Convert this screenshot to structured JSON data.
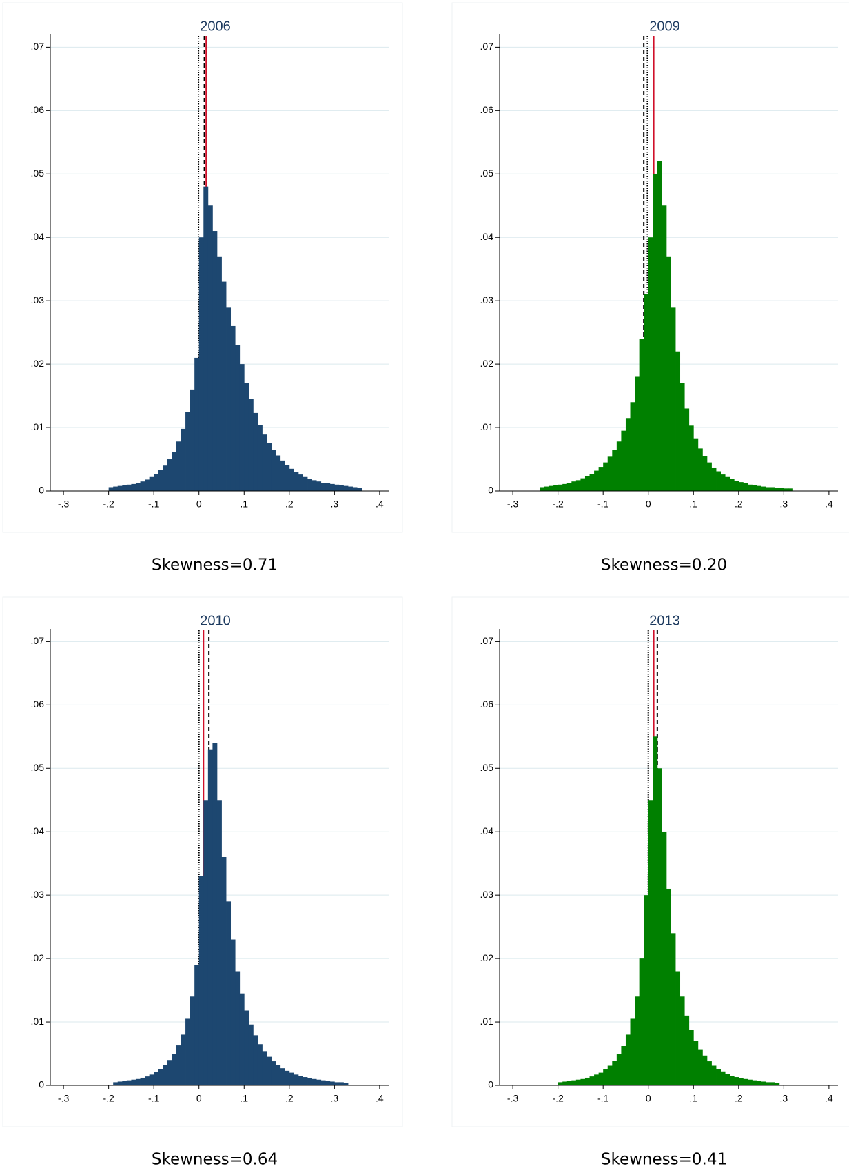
{
  "chart_data": [
    {
      "type": "histogram",
      "title": "2006",
      "caption": "Skewness=0.71",
      "color": "#1d4770",
      "grid": true,
      "xlim": [
        -0.32,
        0.42
      ],
      "ylim": [
        0,
        0.072
      ],
      "xticks": [
        {
          "value": -0.3,
          "label": "-.3"
        },
        {
          "value": -0.2,
          "label": "-.2"
        },
        {
          "value": -0.1,
          "label": "-.1"
        },
        0,
        {
          "value": 0.1,
          "label": ".1"
        },
        {
          "value": 0.2,
          "label": ".2"
        },
        {
          "value": 0.3,
          "label": ".3"
        },
        {
          "value": 0.4,
          "label": ".4"
        }
      ],
      "yticks": [
        0,
        {
          "value": 0.01,
          "label": ".01"
        },
        {
          "value": 0.02,
          "label": ".02"
        },
        {
          "value": 0.03,
          "label": ".03"
        },
        {
          "value": 0.04,
          "label": ".04"
        },
        {
          "value": 0.05,
          "label": ".05"
        },
        {
          "value": 0.06,
          "label": ".06"
        },
        {
          "value": 0.07,
          "label": ".07"
        }
      ],
      "bins": [
        -0.2,
        -0.19,
        -0.18,
        -0.17,
        -0.16,
        -0.15,
        -0.14,
        -0.13,
        -0.12,
        -0.11,
        -0.1,
        -0.09,
        -0.08,
        -0.07,
        -0.06,
        -0.05,
        -0.04,
        -0.03,
        -0.02,
        -0.01,
        0,
        0.01,
        0.02,
        0.03,
        0.04,
        0.05,
        0.06,
        0.07,
        0.08,
        0.09,
        0.1,
        0.11,
        0.12,
        0.13,
        0.14,
        0.15,
        0.16,
        0.17,
        0.18,
        0.19,
        0.2,
        0.21,
        0.22,
        0.23,
        0.24,
        0.25,
        0.26,
        0.27,
        0.28,
        0.29,
        0.3,
        0.31,
        0.32,
        0.33,
        0.34,
        0.35,
        0.36
      ],
      "values": [
        0.0006,
        0.0007,
        0.0008,
        0.0009,
        0.001,
        0.0011,
        0.0013,
        0.0015,
        0.0018,
        0.0022,
        0.0027,
        0.0033,
        0.004,
        0.005,
        0.0062,
        0.0078,
        0.0098,
        0.0125,
        0.016,
        0.021,
        0.04,
        0.048,
        0.045,
        0.041,
        0.037,
        0.033,
        0.029,
        0.026,
        0.023,
        0.02,
        0.017,
        0.0145,
        0.0123,
        0.0104,
        0.0089,
        0.0076,
        0.0065,
        0.0056,
        0.0048,
        0.0041,
        0.0035,
        0.003,
        0.0026,
        0.0022,
        0.0019,
        0.0017,
        0.0015,
        0.0013,
        0.0012,
        0.0011,
        0.001,
        0.0009,
        0.0008,
        0.0007,
        0.0006,
        0.0005
      ],
      "reference_lines": [
        {
          "x": -0.001,
          "color": "#000000",
          "style": "dotted"
        },
        {
          "x": 0.012,
          "color": "#000000",
          "style": "dashed"
        },
        {
          "x": 0.016,
          "color": "#d0102a",
          "style": "solid"
        }
      ]
    },
    {
      "type": "histogram",
      "title": "2009",
      "caption": "Skewness=0.20",
      "color": "#008000",
      "grid": true,
      "xlim": [
        -0.32,
        0.42
      ],
      "ylim": [
        0,
        0.072
      ],
      "xticks": [
        {
          "value": -0.3,
          "label": "-.3"
        },
        {
          "value": -0.2,
          "label": "-.2"
        },
        {
          "value": -0.1,
          "label": "-.1"
        },
        0,
        {
          "value": 0.1,
          "label": ".1"
        },
        {
          "value": 0.2,
          "label": ".2"
        },
        {
          "value": 0.3,
          "label": ".3"
        },
        {
          "value": 0.4,
          "label": ".4"
        }
      ],
      "yticks": [
        0,
        {
          "value": 0.01,
          "label": ".01"
        },
        {
          "value": 0.02,
          "label": ".02"
        },
        {
          "value": 0.03,
          "label": ".03"
        },
        {
          "value": 0.04,
          "label": ".04"
        },
        {
          "value": 0.05,
          "label": ".05"
        },
        {
          "value": 0.06,
          "label": ".06"
        },
        {
          "value": 0.07,
          "label": ".07"
        }
      ],
      "bins": [
        -0.24,
        -0.23,
        -0.22,
        -0.21,
        -0.2,
        -0.19,
        -0.18,
        -0.17,
        -0.16,
        -0.15,
        -0.14,
        -0.13,
        -0.12,
        -0.11,
        -0.1,
        -0.09,
        -0.08,
        -0.07,
        -0.06,
        -0.05,
        -0.04,
        -0.03,
        -0.02,
        -0.01,
        0,
        0.01,
        0.02,
        0.03,
        0.04,
        0.05,
        0.06,
        0.07,
        0.08,
        0.09,
        0.1,
        0.11,
        0.12,
        0.13,
        0.14,
        0.15,
        0.16,
        0.17,
        0.18,
        0.19,
        0.2,
        0.21,
        0.22,
        0.23,
        0.24,
        0.25,
        0.26,
        0.27,
        0.28,
        0.29,
        0.3,
        0.31,
        0.32
      ],
      "values": [
        0.0006,
        0.0007,
        0.0008,
        0.0009,
        0.001,
        0.0011,
        0.0013,
        0.0015,
        0.0017,
        0.002,
        0.0023,
        0.0027,
        0.0032,
        0.0038,
        0.0045,
        0.0054,
        0.0065,
        0.0078,
        0.0095,
        0.0115,
        0.014,
        0.018,
        0.024,
        0.031,
        0.04,
        0.05,
        0.052,
        0.045,
        0.037,
        0.029,
        0.022,
        0.017,
        0.013,
        0.0103,
        0.0083,
        0.0067,
        0.0055,
        0.0045,
        0.0037,
        0.0031,
        0.0026,
        0.0022,
        0.0019,
        0.0016,
        0.0014,
        0.0012,
        0.001,
        0.0009,
        0.0008,
        0.0007,
        0.0006,
        0.0006,
        0.0005,
        0.0005,
        0.0004,
        0.0004
      ],
      "reference_lines": [
        {
          "x": -0.01,
          "color": "#000000",
          "style": "dashed"
        },
        {
          "x": -0.002,
          "color": "#000000",
          "style": "dotted"
        },
        {
          "x": 0.012,
          "color": "#d0102a",
          "style": "solid"
        }
      ]
    },
    {
      "type": "histogram",
      "title": "2010",
      "caption": "Skewness=0.64",
      "color": "#1d4770",
      "grid": true,
      "xlim": [
        -0.32,
        0.42
      ],
      "ylim": [
        0,
        0.072
      ],
      "xticks": [
        {
          "value": -0.3,
          "label": "-.3"
        },
        {
          "value": -0.2,
          "label": "-.2"
        },
        {
          "value": -0.1,
          "label": "-.1"
        },
        0,
        {
          "value": 0.1,
          "label": ".1"
        },
        {
          "value": 0.2,
          "label": ".2"
        },
        {
          "value": 0.3,
          "label": ".3"
        },
        {
          "value": 0.4,
          "label": ".4"
        }
      ],
      "yticks": [
        0,
        {
          "value": 0.01,
          "label": ".01"
        },
        {
          "value": 0.02,
          "label": ".02"
        },
        {
          "value": 0.03,
          "label": ".03"
        },
        {
          "value": 0.04,
          "label": ".04"
        },
        {
          "value": 0.05,
          "label": ".05"
        },
        {
          "value": 0.06,
          "label": ".06"
        },
        {
          "value": 0.07,
          "label": ".07"
        }
      ],
      "bins": [
        -0.19,
        -0.18,
        -0.17,
        -0.16,
        -0.15,
        -0.14,
        -0.13,
        -0.12,
        -0.11,
        -0.1,
        -0.09,
        -0.08,
        -0.07,
        -0.06,
        -0.05,
        -0.04,
        -0.03,
        -0.02,
        -0.01,
        0,
        0.01,
        0.02,
        0.03,
        0.04,
        0.05,
        0.06,
        0.07,
        0.08,
        0.09,
        0.1,
        0.11,
        0.12,
        0.13,
        0.14,
        0.15,
        0.16,
        0.17,
        0.18,
        0.19,
        0.2,
        0.21,
        0.22,
        0.23,
        0.24,
        0.25,
        0.26,
        0.27,
        0.28,
        0.29,
        0.3,
        0.31,
        0.32,
        0.33
      ],
      "values": [
        0.0005,
        0.0006,
        0.0007,
        0.0008,
        0.0009,
        0.001,
        0.0012,
        0.0014,
        0.0017,
        0.0021,
        0.0026,
        0.0032,
        0.004,
        0.005,
        0.0063,
        0.008,
        0.0105,
        0.014,
        0.019,
        0.033,
        0.045,
        0.053,
        0.054,
        0.045,
        0.036,
        0.029,
        0.023,
        0.018,
        0.0145,
        0.0118,
        0.0096,
        0.0079,
        0.0065,
        0.0054,
        0.0045,
        0.0038,
        0.0032,
        0.0027,
        0.0023,
        0.002,
        0.0017,
        0.0015,
        0.0013,
        0.0011,
        0.001,
        0.0009,
        0.0008,
        0.0007,
        0.0006,
        0.0005,
        0.0005,
        0.0004
      ],
      "reference_lines": [
        {
          "x": 0.0,
          "color": "#000000",
          "style": "dotted"
        },
        {
          "x": 0.01,
          "color": "#d0102a",
          "style": "solid"
        },
        {
          "x": 0.022,
          "color": "#000000",
          "style": "dashed"
        }
      ]
    },
    {
      "type": "histogram",
      "title": "2013",
      "caption": "Skewness=0.41",
      "color": "#008000",
      "grid": true,
      "xlim": [
        -0.32,
        0.42
      ],
      "ylim": [
        0,
        0.072
      ],
      "xticks": [
        {
          "value": -0.3,
          "label": "-.3"
        },
        {
          "value": -0.2,
          "label": "-.2"
        },
        {
          "value": -0.1,
          "label": "-.1"
        },
        0,
        {
          "value": 0.1,
          "label": ".1"
        },
        {
          "value": 0.2,
          "label": ".2"
        },
        {
          "value": 0.3,
          "label": ".3"
        },
        {
          "value": 0.4,
          "label": ".4"
        }
      ],
      "yticks": [
        0,
        {
          "value": 0.01,
          "label": ".01"
        },
        {
          "value": 0.02,
          "label": ".02"
        },
        {
          "value": 0.03,
          "label": ".03"
        },
        {
          "value": 0.04,
          "label": ".04"
        },
        {
          "value": 0.05,
          "label": ".05"
        },
        {
          "value": 0.06,
          "label": ".06"
        },
        {
          "value": 0.07,
          "label": ".07"
        }
      ],
      "bins": [
        -0.2,
        -0.19,
        -0.18,
        -0.17,
        -0.16,
        -0.15,
        -0.14,
        -0.13,
        -0.12,
        -0.11,
        -0.1,
        -0.09,
        -0.08,
        -0.07,
        -0.06,
        -0.05,
        -0.04,
        -0.03,
        -0.02,
        -0.01,
        0,
        0.01,
        0.02,
        0.03,
        0.04,
        0.05,
        0.06,
        0.07,
        0.08,
        0.09,
        0.1,
        0.11,
        0.12,
        0.13,
        0.14,
        0.15,
        0.16,
        0.17,
        0.18,
        0.19,
        0.2,
        0.21,
        0.22,
        0.23,
        0.24,
        0.25,
        0.26,
        0.27,
        0.28,
        0.29
      ],
      "values": [
        0.0005,
        0.0006,
        0.0007,
        0.0008,
        0.0009,
        0.001,
        0.0012,
        0.0014,
        0.0017,
        0.002,
        0.0025,
        0.0031,
        0.0039,
        0.0049,
        0.0062,
        0.008,
        0.0105,
        0.014,
        0.02,
        0.03,
        0.045,
        0.055,
        0.05,
        0.04,
        0.031,
        0.024,
        0.018,
        0.014,
        0.011,
        0.0088,
        0.007,
        0.0057,
        0.0047,
        0.0038,
        0.0031,
        0.0026,
        0.0022,
        0.0018,
        0.0015,
        0.0013,
        0.0011,
        0.001,
        0.0009,
        0.0008,
        0.0007,
        0.0006,
        0.0005,
        0.0005,
        0.0004
      ],
      "reference_lines": [
        {
          "x": 0.0,
          "color": "#000000",
          "style": "dotted"
        },
        {
          "x": 0.012,
          "color": "#d0102a",
          "style": "solid"
        },
        {
          "x": 0.02,
          "color": "#000000",
          "style": "dashed"
        }
      ]
    }
  ]
}
